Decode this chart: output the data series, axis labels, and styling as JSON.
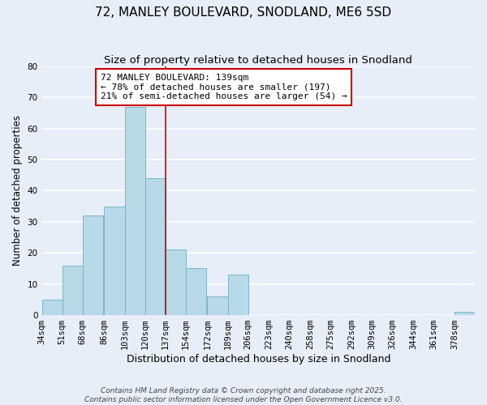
{
  "title": "72, MANLEY BOULEVARD, SNODLAND, ME6 5SD",
  "subtitle": "Size of property relative to detached houses in Snodland",
  "xlabel": "Distribution of detached houses by size in Snodland",
  "ylabel": "Number of detached properties",
  "bins": [
    "34sqm",
    "51sqm",
    "68sqm",
    "86sqm",
    "103sqm",
    "120sqm",
    "137sqm",
    "154sqm",
    "172sqm",
    "189sqm",
    "206sqm",
    "223sqm",
    "240sqm",
    "258sqm",
    "275sqm",
    "292sqm",
    "309sqm",
    "326sqm",
    "344sqm",
    "361sqm",
    "378sqm"
  ],
  "bin_edges": [
    34,
    51,
    68,
    86,
    103,
    120,
    137,
    154,
    172,
    189,
    206,
    223,
    240,
    258,
    275,
    292,
    309,
    326,
    344,
    361,
    378
  ],
  "bin_width": 17,
  "counts": [
    5,
    16,
    32,
    35,
    67,
    44,
    21,
    15,
    6,
    13,
    0,
    0,
    0,
    0,
    0,
    0,
    0,
    0,
    0,
    0,
    1
  ],
  "bar_color": "#b8d9e8",
  "bar_edge_color": "#7ab5cc",
  "property_line_x": 137,
  "ylim": [
    0,
    80
  ],
  "yticks": [
    0,
    10,
    20,
    30,
    40,
    50,
    60,
    70,
    80
  ],
  "annotation_title": "72 MANLEY BOULEVARD: 139sqm",
  "annotation_line1": "← 78% of detached houses are smaller (197)",
  "annotation_line2": "21% of semi-detached houses are larger (54) →",
  "annotation_box_color": "#ffffff",
  "annotation_box_edge_color": "#cc0000",
  "background_color": "#e8eef8",
  "grid_color": "#ffffff",
  "footer_line1": "Contains HM Land Registry data © Crown copyright and database right 2025.",
  "footer_line2": "Contains public sector information licensed under the Open Government Licence v3.0.",
  "title_fontsize": 11,
  "subtitle_fontsize": 9.5,
  "xlabel_fontsize": 9,
  "ylabel_fontsize": 8.5,
  "tick_fontsize": 7.5,
  "annotation_fontsize": 8,
  "footer_fontsize": 6.5
}
